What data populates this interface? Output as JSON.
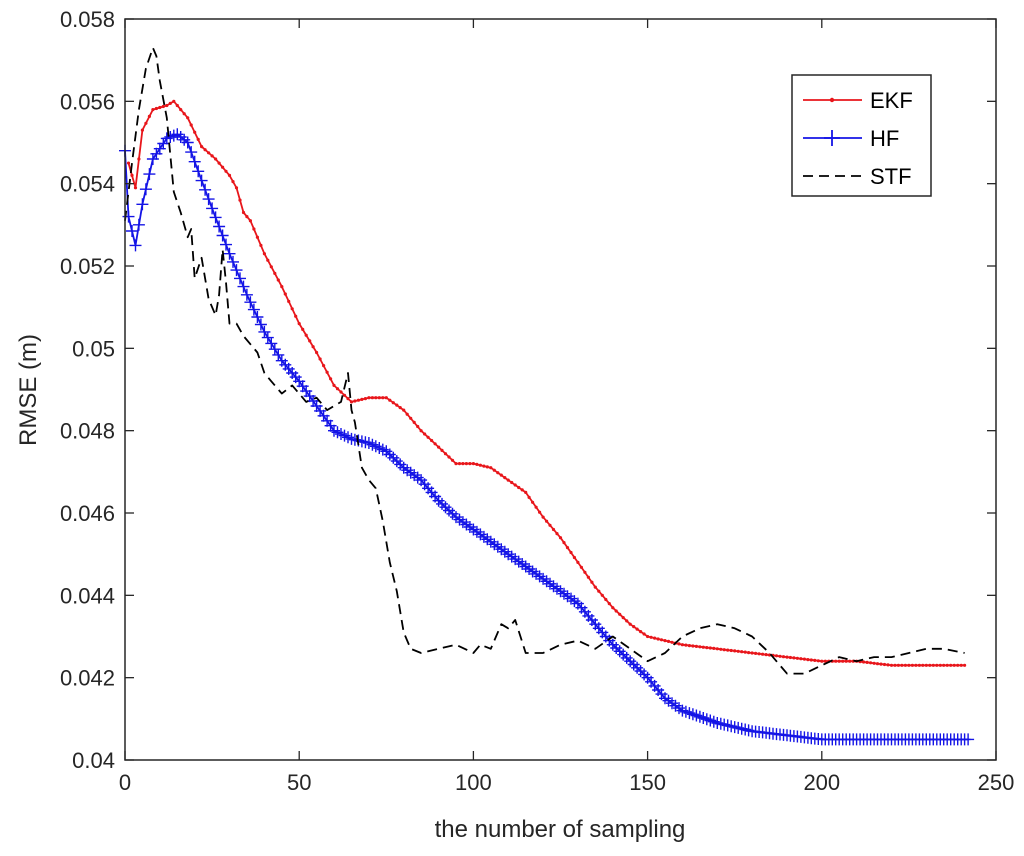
{
  "chart_data": {
    "type": "line",
    "title": "",
    "xlabel": "the number of sampling",
    "ylabel": "RMSE (m)",
    "xlim": [
      0,
      250
    ],
    "ylim": [
      0.04,
      0.058
    ],
    "xticks": [
      0,
      50,
      100,
      150,
      200,
      250
    ],
    "xtick_labels": [
      "0",
      "50",
      "100",
      "150",
      "200",
      "250"
    ],
    "yticks": [
      0.04,
      0.042,
      0.044,
      0.046,
      0.048,
      0.05,
      0.052,
      0.054,
      0.056,
      0.058
    ],
    "ytick_labels": [
      "0.04",
      "0.042",
      "0.044",
      "0.046",
      "0.048",
      "0.05",
      "0.052",
      "0.054",
      "0.056",
      "0.058"
    ],
    "grid": false,
    "legend_position": "top-right",
    "series": [
      {
        "name": "EKF",
        "color": "#e8161b",
        "style": "solid-dot",
        "x": [
          1,
          3,
          5,
          8,
          12,
          14,
          18,
          22,
          26,
          30,
          32,
          34,
          36,
          40,
          45,
          50,
          55,
          60,
          65,
          70,
          75,
          80,
          85,
          90,
          95,
          100,
          105,
          110,
          115,
          120,
          125,
          130,
          135,
          140,
          145,
          150,
          155,
          160,
          170,
          180,
          190,
          200,
          210,
          220,
          230,
          241
        ],
        "y": [
          0.0545,
          0.0539,
          0.0553,
          0.0558,
          0.0559,
          0.056,
          0.0556,
          0.0549,
          0.0546,
          0.0542,
          0.0539,
          0.0533,
          0.0531,
          0.0523,
          0.0515,
          0.0506,
          0.0499,
          0.0491,
          0.0487,
          0.0488,
          0.0488,
          0.0485,
          0.048,
          0.0476,
          0.0472,
          0.0472,
          0.0471,
          0.0468,
          0.0465,
          0.0459,
          0.0454,
          0.0448,
          0.0442,
          0.0437,
          0.0433,
          0.043,
          0.0429,
          0.0428,
          0.0427,
          0.0426,
          0.0425,
          0.0424,
          0.0424,
          0.0423,
          0.0423,
          0.0423
        ]
      },
      {
        "name": "HF",
        "color": "#1414e6",
        "style": "solid-plus",
        "x": [
          0,
          1,
          3,
          5,
          8,
          12,
          15,
          18,
          21,
          25,
          30,
          35,
          40,
          45,
          50,
          55,
          60,
          65,
          70,
          75,
          80,
          85,
          90,
          95,
          100,
          105,
          110,
          115,
          120,
          125,
          130,
          135,
          140,
          145,
          150,
          155,
          160,
          170,
          180,
          190,
          200,
          210,
          220,
          230,
          242
        ],
        "y": [
          0.0548,
          0.0532,
          0.0525,
          0.0535,
          0.0546,
          0.0551,
          0.0552,
          0.055,
          0.0543,
          0.0534,
          0.0523,
          0.0513,
          0.0504,
          0.0497,
          0.0492,
          0.0486,
          0.048,
          0.0478,
          0.0477,
          0.0475,
          0.0471,
          0.0468,
          0.0463,
          0.0459,
          0.0456,
          0.0453,
          0.045,
          0.0447,
          0.0444,
          0.0441,
          0.0438,
          0.0433,
          0.0428,
          0.0424,
          0.042,
          0.0415,
          0.0412,
          0.0409,
          0.0407,
          0.0406,
          0.0405,
          0.0405,
          0.0405,
          0.0405,
          0.0405
        ]
      },
      {
        "name": "STF",
        "color": "#000000",
        "style": "dashed",
        "x": [
          0,
          2,
          4,
          6,
          8,
          9,
          10,
          12,
          14,
          16,
          18,
          19,
          20,
          22,
          24,
          26,
          27,
          28,
          29,
          30,
          32,
          34,
          36,
          38,
          40,
          42,
          45,
          48,
          52,
          55,
          58,
          62,
          64,
          65,
          66,
          68,
          70,
          72,
          74,
          76,
          78,
          80,
          82,
          85,
          90,
          95,
          100,
          102,
          105,
          108,
          110,
          112,
          115,
          120,
          125,
          130,
          135,
          140,
          145,
          150,
          155,
          160,
          165,
          170,
          175,
          180,
          185,
          190,
          195,
          200,
          205,
          210,
          215,
          220,
          225,
          230,
          235,
          241
        ],
        "y": [
          0.0531,
          0.0545,
          0.0558,
          0.0568,
          0.0573,
          0.0571,
          0.0565,
          0.0556,
          0.0538,
          0.0533,
          0.0527,
          0.0529,
          0.0517,
          0.0522,
          0.0512,
          0.0508,
          0.0513,
          0.0524,
          0.0516,
          0.0506,
          0.0506,
          0.0503,
          0.0501,
          0.0499,
          0.0494,
          0.0492,
          0.0489,
          0.0491,
          0.0487,
          0.0488,
          0.0485,
          0.0487,
          0.0494,
          0.0485,
          0.0482,
          0.0471,
          0.0468,
          0.0466,
          0.0458,
          0.0448,
          0.0441,
          0.0431,
          0.0427,
          0.0426,
          0.0427,
          0.0428,
          0.0426,
          0.0428,
          0.0427,
          0.0433,
          0.0432,
          0.0434,
          0.0426,
          0.0426,
          0.0428,
          0.0429,
          0.0427,
          0.043,
          0.0427,
          0.0424,
          0.0426,
          0.043,
          0.0432,
          0.0433,
          0.0432,
          0.043,
          0.0426,
          0.0421,
          0.0421,
          0.0423,
          0.0425,
          0.0424,
          0.0425,
          0.0425,
          0.0426,
          0.0427,
          0.0427,
          0.0426
        ]
      }
    ]
  }
}
